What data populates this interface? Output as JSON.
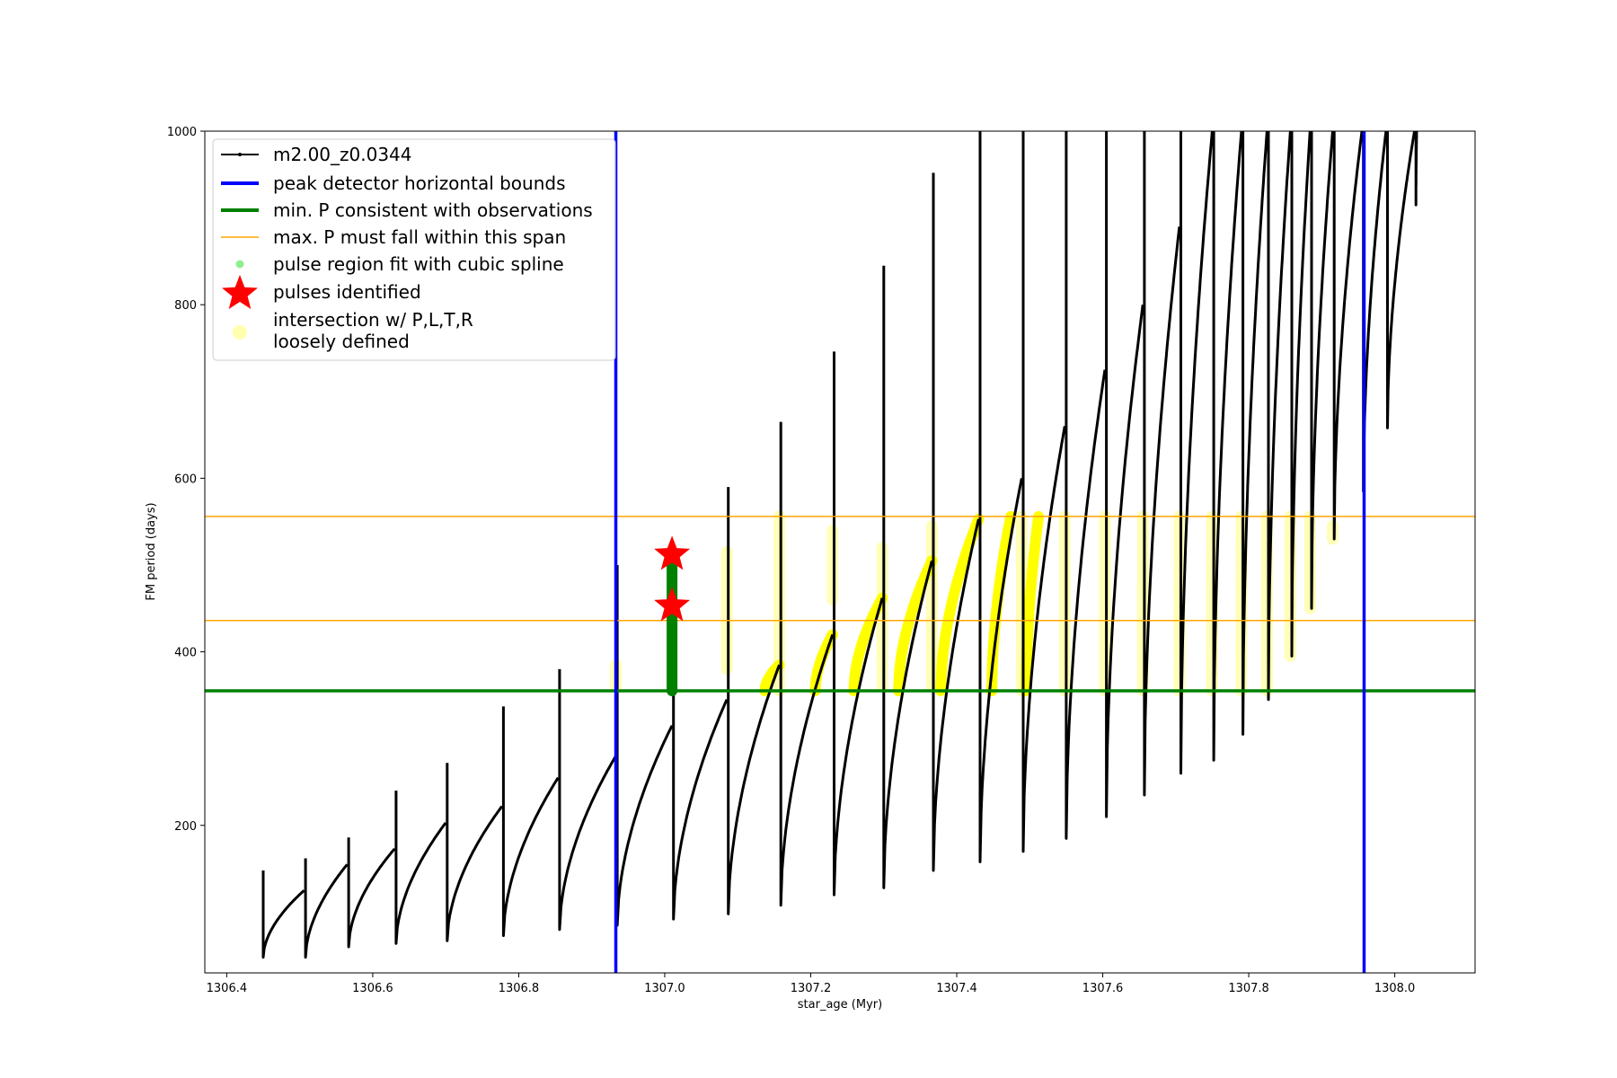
{
  "chart_data": {
    "type": "line",
    "xlabel": "star_age (Myr)",
    "ylabel": "FM period (days)",
    "xlim": [
      1306.37,
      1308.11
    ],
    "ylim": [
      30,
      1000
    ],
    "x_ticks": [
      "1306.4",
      "1306.6",
      "1306.8",
      "1307.0",
      "1307.2",
      "1307.4",
      "1307.6",
      "1307.8",
      "1308.0"
    ],
    "y_ticks": [
      "200",
      "400",
      "600",
      "800",
      "1000"
    ],
    "grid": false,
    "legend_position": "upper-left",
    "legend": [
      "m2.00_z0.0344",
      "peak detector horizontal bounds",
      "min. P consistent with observations",
      "max. P must fall within this span",
      "pulse region fit with cubic spline",
      "pulses identified",
      "intersection w/ P,L,T,R",
      "loosely defined"
    ],
    "series": [
      {
        "name": "m2.00_z0.0344",
        "color": "#000000",
        "pulses": [
          {
            "start": 1306.45,
            "x_peak": 1306.506,
            "p_min": 48,
            "p_peak": 125,
            "spike": 148
          },
          {
            "start": 1306.508,
            "x_peak": 1306.565,
            "p_min": 48,
            "p_peak": 155,
            "spike": 162
          },
          {
            "start": 1306.567,
            "x_peak": 1306.63,
            "p_min": 60,
            "p_peak": 173,
            "spike": 186
          },
          {
            "start": 1306.632,
            "x_peak": 1306.7,
            "p_min": 64,
            "p_peak": 203,
            "spike": 240
          },
          {
            "start": 1306.702,
            "x_peak": 1306.777,
            "p_min": 67,
            "p_peak": 222,
            "spike": 272
          },
          {
            "start": 1306.779,
            "x_peak": 1306.854,
            "p_min": 73,
            "p_peak": 255,
            "spike": 337
          },
          {
            "start": 1306.856,
            "x_peak": 1306.933,
            "p_min": 80,
            "p_peak": 280,
            "spike": 380
          },
          {
            "start": 1306.935,
            "x_peak": 1307.01,
            "p_min": 85,
            "p_peak": 315,
            "spike": 500
          },
          {
            "start": 1307.012,
            "x_peak": 1307.085,
            "p_min": 92,
            "p_peak": 345,
            "spike": 515
          },
          {
            "start": 1307.087,
            "x_peak": 1307.157,
            "p_min": 98,
            "p_peak": 385,
            "spike": 590
          },
          {
            "start": 1307.159,
            "x_peak": 1307.23,
            "p_min": 108,
            "p_peak": 420,
            "spike": 665
          },
          {
            "start": 1307.232,
            "x_peak": 1307.298,
            "p_min": 120,
            "p_peak": 462,
            "spike": 746
          },
          {
            "start": 1307.3,
            "x_peak": 1307.366,
            "p_min": 128,
            "p_peak": 505,
            "spike": 845
          },
          {
            "start": 1307.368,
            "x_peak": 1307.43,
            "p_min": 148,
            "p_peak": 553,
            "spike": 952
          },
          {
            "start": 1307.432,
            "x_peak": 1307.489,
            "p_min": 158,
            "p_peak": 600,
            "spike": 1000
          },
          {
            "start": 1307.491,
            "x_peak": 1307.548,
            "p_min": 170,
            "p_peak": 660,
            "spike": 1000
          },
          {
            "start": 1307.55,
            "x_peak": 1307.603,
            "p_min": 185,
            "p_peak": 725,
            "spike": 1000
          },
          {
            "start": 1307.605,
            "x_peak": 1307.655,
            "p_min": 210,
            "p_peak": 800,
            "spike": 1000
          },
          {
            "start": 1307.657,
            "x_peak": 1307.705,
            "p_min": 235,
            "p_peak": 890,
            "spike": 1000
          },
          {
            "start": 1307.707,
            "x_peak": 1307.75,
            "p_min": 260,
            "p_peak": 1000,
            "spike": 1000
          },
          {
            "start": 1307.752,
            "x_peak": 1307.79,
            "p_min": 275,
            "p_peak": 1000,
            "spike": 1000
          },
          {
            "start": 1307.792,
            "x_peak": 1307.825,
            "p_min": 305,
            "p_peak": 1000,
            "spike": 1000
          },
          {
            "start": 1307.827,
            "x_peak": 1307.857,
            "p_min": 345,
            "p_peak": 1000,
            "spike": 1000
          },
          {
            "start": 1307.859,
            "x_peak": 1307.884,
            "p_min": 395,
            "p_peak": 1000,
            "spike": 1000
          },
          {
            "start": 1307.886,
            "x_peak": 1307.915,
            "p_min": 450,
            "p_peak": 1000,
            "spike": 1000
          },
          {
            "start": 1307.917,
            "x_peak": 1307.955,
            "p_min": 530,
            "p_peak": 1000,
            "spike": 1000
          },
          {
            "start": 1307.957,
            "x_peak": 1307.988,
            "p_min": 585,
            "p_peak": 1000,
            "spike": 1000
          },
          {
            "start": 1307.99,
            "x_peak": 1308.027,
            "p_min": 658,
            "p_peak": 1000,
            "spike": 1000
          },
          {
            "start": 1308.029,
            "x_peak": 1308.03,
            "p_min": 915,
            "p_peak": 1000,
            "spike": 1000
          }
        ]
      },
      {
        "name": "peak detector horizontal bounds",
        "color": "#0000ff",
        "x": [
          1306.933,
          1307.958
        ]
      },
      {
        "name": "min. P consistent with observations",
        "color": "#008000",
        "y": 355
      },
      {
        "name": "max. P must fall within this span",
        "color": "#ffa500",
        "y": [
          436,
          556
        ]
      },
      {
        "name": "pulse region fit with cubic spline",
        "color": "#008000",
        "x": 1307.01,
        "y_range": [
          355,
          500
        ]
      },
      {
        "name": "pulses identified",
        "color": "#ff0000",
        "points": [
          {
            "x": 1307.01,
            "y": 512
          },
          {
            "x": 1307.01,
            "y": 453
          }
        ]
      },
      {
        "name": "intersection w/ P,L,T,R",
        "color": "#ffff00",
        "spans": [
          {
            "x0": 1307.137,
            "x1": 1307.157,
            "y0": 355,
            "y1": 385
          },
          {
            "x0": 1307.206,
            "x1": 1307.23,
            "y0": 355,
            "y1": 420
          },
          {
            "x0": 1307.259,
            "x1": 1307.298,
            "y0": 355,
            "y1": 462
          },
          {
            "x0": 1307.32,
            "x1": 1307.366,
            "y0": 355,
            "y1": 505
          },
          {
            "x0": 1307.378,
            "x1": 1307.43,
            "y0": 355,
            "y1": 553
          },
          {
            "x0": 1307.448,
            "x1": 1307.474,
            "y0": 355,
            "y1": 556
          },
          {
            "x0": 1307.495,
            "x1": 1307.512,
            "y0": 355,
            "y1": 556
          }
        ]
      },
      {
        "name": "loosely defined",
        "color": "#ffff99",
        "bands": [
          {
            "x": 1306.933,
            "y0": 360,
            "y1": 385
          },
          {
            "x": 1307.085,
            "y0": 380,
            "y1": 515
          },
          {
            "x": 1307.157,
            "y0": 355,
            "y1": 556
          },
          {
            "x": 1307.23,
            "y0": 460,
            "y1": 540
          },
          {
            "x": 1307.298,
            "y0": 360,
            "y1": 520
          },
          {
            "x": 1307.366,
            "y0": 360,
            "y1": 545
          },
          {
            "x": 1307.489,
            "y0": 355,
            "y1": 556
          },
          {
            "x": 1307.548,
            "y0": 355,
            "y1": 556
          },
          {
            "x": 1307.603,
            "y0": 355,
            "y1": 556
          },
          {
            "x": 1307.655,
            "y0": 355,
            "y1": 556
          },
          {
            "x": 1307.705,
            "y0": 355,
            "y1": 556
          },
          {
            "x": 1307.75,
            "y0": 355,
            "y1": 556
          },
          {
            "x": 1307.79,
            "y0": 355,
            "y1": 556
          },
          {
            "x": 1307.825,
            "y0": 355,
            "y1": 556
          },
          {
            "x": 1307.857,
            "y0": 395,
            "y1": 556
          },
          {
            "x": 1307.884,
            "y0": 450,
            "y1": 556
          },
          {
            "x": 1307.915,
            "y0": 530,
            "y1": 545
          }
        ]
      }
    ]
  }
}
